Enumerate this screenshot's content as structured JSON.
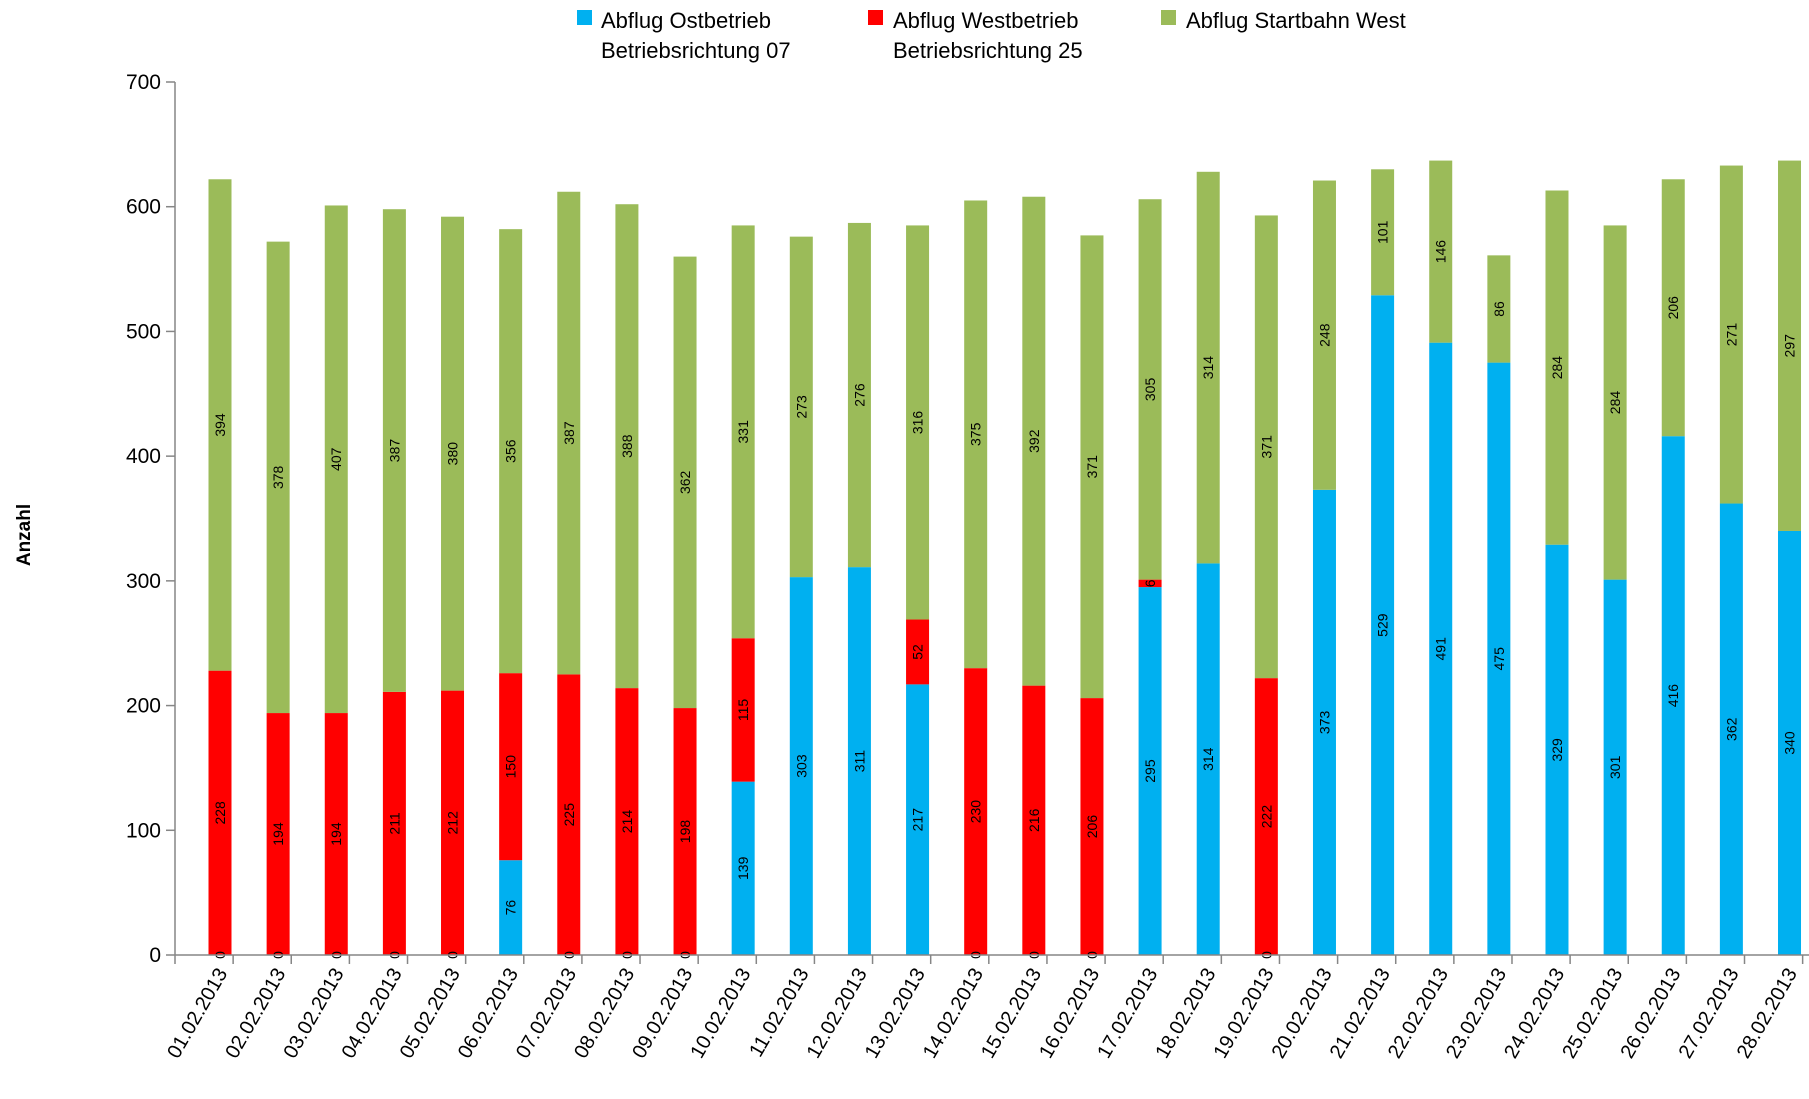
{
  "chart_data": {
    "type": "bar",
    "stacked": true,
    "title": "",
    "xlabel": "",
    "ylabel": "Anzahl",
    "ylim": [
      0,
      700
    ],
    "yticks": [
      0,
      100,
      200,
      300,
      400,
      500,
      600,
      700
    ],
    "legend_position": "top",
    "categories": [
      "01.02.2013",
      "02.02.2013",
      "03.02.2013",
      "04.02.2013",
      "05.02.2013",
      "06.02.2013",
      "07.02.2013",
      "08.02.2013",
      "09.02.2013",
      "10.02.2013",
      "11.02.2013",
      "12.02.2013",
      "13.02.2013",
      "14.02.2013",
      "15.02.2013",
      "16.02.2013",
      "17.02.2013",
      "18.02.2013",
      "19.02.2013",
      "20.02.2013",
      "21.02.2013",
      "22.02.2013",
      "23.02.2013",
      "24.02.2013",
      "25.02.2013",
      "26.02.2013",
      "27.02.2013",
      "28.02.2013"
    ],
    "series": [
      {
        "key": "ost",
        "name": "Abflug Ostbetrieb",
        "name_line2": "Betriebsrichtung 07",
        "color": "#00B0F0",
        "values": [
          0,
          0,
          0,
          0,
          0,
          76,
          0,
          0,
          0,
          139,
          303,
          311,
          217,
          0,
          0,
          0,
          295,
          314,
          0,
          373,
          529,
          491,
          475,
          329,
          301,
          416,
          362,
          340
        ]
      },
      {
        "key": "west",
        "name": "Abflug Westbetrieb",
        "name_line2": "Betriebsrichtung 25",
        "color": "#FF0000",
        "values": [
          228,
          194,
          194,
          211,
          212,
          150,
          225,
          214,
          198,
          115,
          0,
          0,
          52,
          230,
          216,
          206,
          6,
          0,
          222,
          0,
          0,
          0,
          0,
          0,
          0,
          0,
          0,
          0
        ]
      },
      {
        "key": "startbahn",
        "name": "Abflug Startbahn West",
        "name_line2": "",
        "color": "#9BBB59",
        "values": [
          394,
          378,
          407,
          387,
          380,
          356,
          387,
          388,
          362,
          331,
          273,
          276,
          316,
          375,
          392,
          371,
          305,
          314,
          371,
          248,
          101,
          146,
          86,
          284,
          284,
          206,
          271,
          297
        ]
      }
    ],
    "label_visibility": {
      "ost": [
        true,
        true,
        true,
        true,
        true,
        true,
        true,
        true,
        true,
        true,
        true,
        true,
        true,
        true,
        true,
        true,
        true,
        true,
        true,
        true,
        true,
        true,
        true,
        true,
        true,
        true,
        true,
        true
      ],
      "west": [
        true,
        true,
        true,
        true,
        true,
        true,
        true,
        true,
        true,
        true,
        false,
        false,
        true,
        true,
        true,
        true,
        true,
        false,
        true,
        false,
        false,
        false,
        false,
        false,
        false,
        false,
        false,
        false
      ],
      "startbahn": [
        true,
        true,
        true,
        true,
        true,
        true,
        true,
        true,
        true,
        true,
        true,
        true,
        true,
        true,
        true,
        true,
        true,
        true,
        true,
        true,
        true,
        true,
        true,
        true,
        true,
        true,
        true,
        true
      ]
    }
  }
}
